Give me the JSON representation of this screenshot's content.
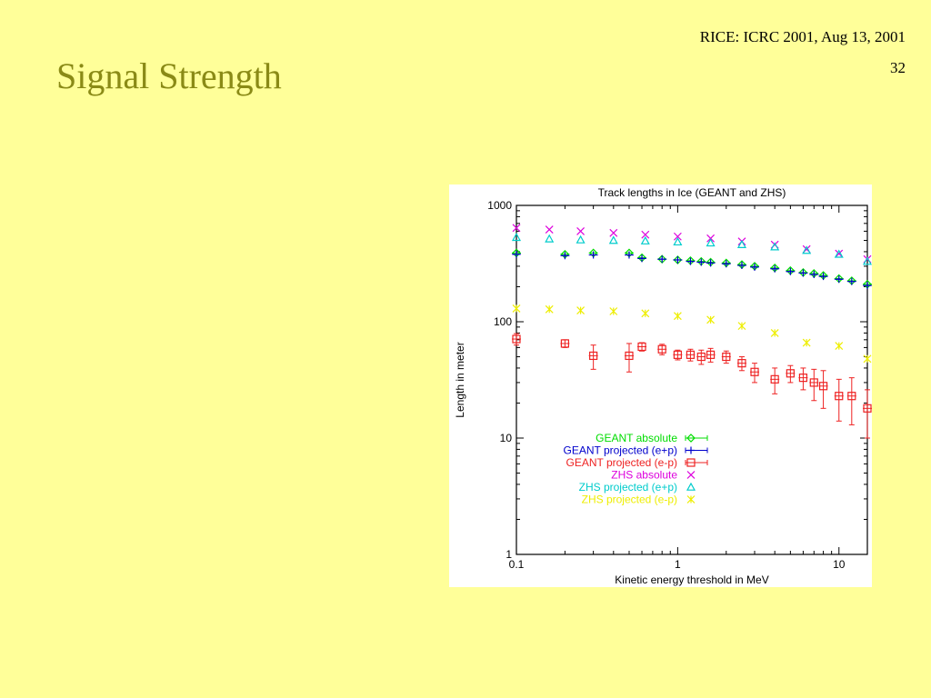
{
  "slide": {
    "header": "RICE: ICRC 2001, Aug 13, 2001",
    "page_number": "32",
    "title": "Signal Strength"
  },
  "chart_data": {
    "type": "scatter",
    "title": "Track lengths in Ice (GEANT and ZHS)",
    "xlabel": "Kinetic energy threshold in MeV",
    "ylabel": "Length in meter",
    "xscale": "log",
    "yscale": "log",
    "xlim": [
      0.1,
      15
    ],
    "ylim": [
      1,
      1000
    ],
    "x_ticks": [
      0.1,
      1,
      10
    ],
    "x_tick_labels": [
      "0.1",
      "1",
      "10"
    ],
    "y_ticks": [
      1,
      10,
      100,
      1000
    ],
    "y_tick_labels": [
      "1",
      "10",
      "100",
      "1000"
    ],
    "grid": false,
    "legend_position": "center",
    "series": [
      {
        "name": "GEANT absolute",
        "color": "#00dd00",
        "marker": "diamond",
        "errorbars": true,
        "points": [
          [
            0.1,
            390
          ],
          [
            0.2,
            380
          ],
          [
            0.3,
            390
          ],
          [
            0.5,
            390
          ],
          [
            0.6,
            355
          ],
          [
            0.8,
            345
          ],
          [
            1.0,
            340
          ],
          [
            1.2,
            335
          ],
          [
            1.4,
            330
          ],
          [
            1.6,
            325
          ],
          [
            2.0,
            320
          ],
          [
            2.5,
            310
          ],
          [
            3.0,
            300
          ],
          [
            4.0,
            290
          ],
          [
            5.0,
            275
          ],
          [
            6.0,
            265
          ],
          [
            7.0,
            260
          ],
          [
            8.0,
            250
          ],
          [
            10.0,
            235
          ],
          [
            12.0,
            225
          ],
          [
            15.0,
            210
          ]
        ]
      },
      {
        "name": "GEANT projected (e+p)",
        "color": "#0000cc",
        "marker": "plus",
        "errorbars": true,
        "points": [
          [
            0.1,
            380
          ],
          [
            0.2,
            370
          ],
          [
            0.3,
            375
          ],
          [
            0.5,
            375
          ],
          [
            0.6,
            350
          ],
          [
            0.8,
            345
          ],
          [
            1.0,
            340
          ],
          [
            1.2,
            330
          ],
          [
            1.4,
            325
          ],
          [
            1.6,
            320
          ],
          [
            2.0,
            315
          ],
          [
            2.5,
            305
          ],
          [
            3.0,
            295
          ],
          [
            4.0,
            285
          ],
          [
            5.0,
            270
          ],
          [
            6.0,
            262
          ],
          [
            7.0,
            255
          ],
          [
            8.0,
            245
          ],
          [
            10.0,
            232
          ],
          [
            12.0,
            222
          ],
          [
            15.0,
            205
          ]
        ]
      },
      {
        "name": "GEANT projected (e-p)",
        "color": "#ee2222",
        "marker": "square",
        "errorbars": true,
        "points": [
          [
            0.1,
            71,
            8
          ],
          [
            0.2,
            65,
            5
          ],
          [
            0.3,
            51,
            12
          ],
          [
            0.5,
            51,
            14
          ],
          [
            0.6,
            61,
            5
          ],
          [
            0.8,
            58,
            6
          ],
          [
            1.0,
            52,
            5
          ],
          [
            1.2,
            52,
            6
          ],
          [
            1.4,
            50,
            7
          ],
          [
            1.6,
            52,
            7
          ],
          [
            2.0,
            50,
            6
          ],
          [
            2.5,
            44,
            6
          ],
          [
            3.0,
            37,
            7
          ],
          [
            4.0,
            32,
            8
          ],
          [
            5.0,
            36,
            6
          ],
          [
            6.0,
            33,
            7
          ],
          [
            7.0,
            30,
            9
          ],
          [
            8.0,
            28,
            10
          ],
          [
            10.0,
            23,
            9
          ],
          [
            12.0,
            23,
            10
          ],
          [
            15.0,
            18,
            8
          ]
        ]
      },
      {
        "name": "ZHS absolute",
        "color": "#dd00dd",
        "marker": "x",
        "errorbars": false,
        "points": [
          [
            0.1,
            640
          ],
          [
            0.16,
            620
          ],
          [
            0.25,
            600
          ],
          [
            0.4,
            580
          ],
          [
            0.63,
            560
          ],
          [
            1.0,
            540
          ],
          [
            1.6,
            520
          ],
          [
            2.5,
            490
          ],
          [
            4.0,
            460
          ],
          [
            6.3,
            420
          ],
          [
            10.0,
            385
          ],
          [
            15.0,
            345
          ]
        ]
      },
      {
        "name": "ZHS projected (e+p)",
        "color": "#00cccc",
        "marker": "triangle",
        "errorbars": false,
        "points": [
          [
            0.1,
            530
          ],
          [
            0.16,
            515
          ],
          [
            0.25,
            505
          ],
          [
            0.4,
            500
          ],
          [
            0.63,
            495
          ],
          [
            1.0,
            485
          ],
          [
            1.6,
            475
          ],
          [
            2.5,
            460
          ],
          [
            4.0,
            440
          ],
          [
            6.3,
            410
          ],
          [
            10.0,
            380
          ],
          [
            15.0,
            330
          ]
        ]
      },
      {
        "name": "ZHS projected (e-p)",
        "color": "#eeee00",
        "marker": "asterisk",
        "errorbars": false,
        "points": [
          [
            0.1,
            130
          ],
          [
            0.16,
            128
          ],
          [
            0.25,
            125
          ],
          [
            0.4,
            123
          ],
          [
            0.63,
            118
          ],
          [
            1.0,
            112
          ],
          [
            1.6,
            104
          ],
          [
            2.5,
            92
          ],
          [
            4.0,
            80
          ],
          [
            6.3,
            66
          ],
          [
            10.0,
            62
          ],
          [
            15.0,
            48
          ]
        ]
      }
    ]
  }
}
